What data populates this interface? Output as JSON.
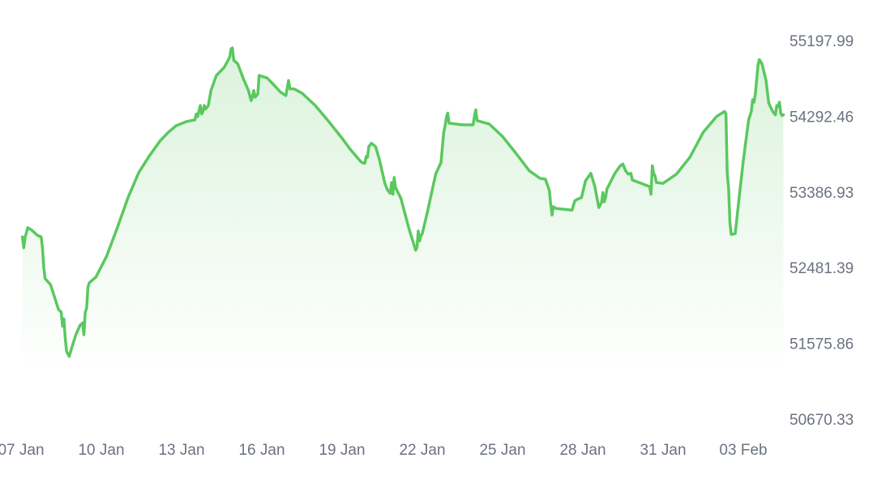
{
  "chart_data": {
    "type": "area",
    "title": "",
    "xlabel": "",
    "ylabel": "",
    "grid": false,
    "legend": "none",
    "ylim": [
      50670.33,
      55197.99
    ],
    "y_ticks": [
      "55197.99",
      "54292.46",
      "53386.93",
      "52481.39",
      "51575.86",
      "50670.33"
    ],
    "x_ticks": [
      {
        "day": 0,
        "label": "07 Jan"
      },
      {
        "day": 3,
        "label": "10 Jan"
      },
      {
        "day": 6,
        "label": "13 Jan"
      },
      {
        "day": 9,
        "label": "16 Jan"
      },
      {
        "day": 12,
        "label": "19 Jan"
      },
      {
        "day": 15,
        "label": "22 Jan"
      },
      {
        "day": 18,
        "label": "25 Jan"
      },
      {
        "day": 21,
        "label": "28 Jan"
      },
      {
        "day": 24,
        "label": "31 Jan"
      },
      {
        "day": 27,
        "label": "03 Feb"
      }
    ],
    "series": [
      {
        "color": "#5ac85f",
        "points": [
          [
            0.05,
            52850
          ],
          [
            0.1,
            52720
          ],
          [
            0.15,
            52840
          ],
          [
            0.25,
            52960
          ],
          [
            0.4,
            52930
          ],
          [
            0.6,
            52870
          ],
          [
            0.75,
            52850
          ],
          [
            0.8,
            52720
          ],
          [
            0.85,
            52480
          ],
          [
            0.9,
            52350
          ],
          [
            1.1,
            52280
          ],
          [
            1.3,
            52080
          ],
          [
            1.4,
            51980
          ],
          [
            1.5,
            51950
          ],
          [
            1.55,
            51780
          ],
          [
            1.6,
            51870
          ],
          [
            1.65,
            51650
          ],
          [
            1.7,
            51480
          ],
          [
            1.8,
            51420
          ],
          [
            1.9,
            51530
          ],
          [
            2.05,
            51680
          ],
          [
            2.2,
            51790
          ],
          [
            2.3,
            51820
          ],
          [
            2.35,
            51680
          ],
          [
            2.4,
            51950
          ],
          [
            2.45,
            52000
          ],
          [
            2.5,
            52250
          ],
          [
            2.55,
            52300
          ],
          [
            2.8,
            52370
          ],
          [
            3.2,
            52620
          ],
          [
            3.6,
            52960
          ],
          [
            4.0,
            53320
          ],
          [
            4.4,
            53620
          ],
          [
            4.8,
            53820
          ],
          [
            5.2,
            54000
          ],
          [
            5.5,
            54100
          ],
          [
            5.8,
            54180
          ],
          [
            6.2,
            54230
          ],
          [
            6.5,
            54250
          ],
          [
            6.55,
            54320
          ],
          [
            6.6,
            54290
          ],
          [
            6.7,
            54420
          ],
          [
            6.75,
            54320
          ],
          [
            6.8,
            54350
          ],
          [
            6.85,
            54420
          ],
          [
            6.9,
            54380
          ],
          [
            7.0,
            54420
          ],
          [
            7.1,
            54600
          ],
          [
            7.3,
            54780
          ],
          [
            7.6,
            54880
          ],
          [
            7.8,
            55000
          ],
          [
            7.85,
            55100
          ],
          [
            7.9,
            55110
          ],
          [
            7.95,
            54960
          ],
          [
            8.1,
            54920
          ],
          [
            8.3,
            54750
          ],
          [
            8.5,
            54600
          ],
          [
            8.6,
            54480
          ],
          [
            8.65,
            54520
          ],
          [
            8.7,
            54600
          ],
          [
            8.75,
            54520
          ],
          [
            8.85,
            54560
          ],
          [
            8.9,
            54780
          ],
          [
            9.2,
            54750
          ],
          [
            9.5,
            54650
          ],
          [
            9.7,
            54580
          ],
          [
            9.9,
            54540
          ],
          [
            10.0,
            54720
          ],
          [
            10.05,
            54620
          ],
          [
            10.2,
            54620
          ],
          [
            10.5,
            54570
          ],
          [
            11.0,
            54420
          ],
          [
            11.5,
            54230
          ],
          [
            12.0,
            54030
          ],
          [
            12.3,
            53900
          ],
          [
            12.7,
            53750
          ],
          [
            12.8,
            53730
          ],
          [
            12.85,
            53730
          ],
          [
            12.9,
            53810
          ],
          [
            12.95,
            53800
          ],
          [
            13.0,
            53930
          ],
          [
            13.1,
            53970
          ],
          [
            13.25,
            53930
          ],
          [
            13.4,
            53770
          ],
          [
            13.6,
            53490
          ],
          [
            13.7,
            53410
          ],
          [
            13.8,
            53370
          ],
          [
            13.85,
            53500
          ],
          [
            13.9,
            53360
          ],
          [
            13.95,
            53560
          ],
          [
            14.0,
            53440
          ],
          [
            14.2,
            53310
          ],
          [
            14.5,
            52950
          ],
          [
            14.75,
            52690
          ],
          [
            14.8,
            52720
          ],
          [
            14.85,
            52920
          ],
          [
            14.9,
            52800
          ],
          [
            14.95,
            52860
          ],
          [
            15.0,
            52890
          ],
          [
            15.2,
            53160
          ],
          [
            15.5,
            53600
          ],
          [
            15.7,
            53740
          ],
          [
            15.8,
            54100
          ],
          [
            15.85,
            54170
          ],
          [
            15.9,
            54280
          ],
          [
            15.95,
            54330
          ],
          [
            16.0,
            54210
          ],
          [
            16.5,
            54190
          ],
          [
            16.9,
            54190
          ],
          [
            16.95,
            54300
          ],
          [
            17.0,
            54370
          ],
          [
            17.05,
            54240
          ],
          [
            17.5,
            54200
          ],
          [
            18.0,
            54050
          ],
          [
            18.5,
            53850
          ],
          [
            19.0,
            53640
          ],
          [
            19.4,
            53550
          ],
          [
            19.6,
            53540
          ],
          [
            19.7,
            53450
          ],
          [
            19.75,
            53400
          ],
          [
            19.8,
            53240
          ],
          [
            19.85,
            53110
          ],
          [
            19.9,
            53210
          ],
          [
            20.0,
            53190
          ],
          [
            20.6,
            53170
          ],
          [
            20.7,
            53280
          ],
          [
            20.8,
            53300
          ],
          [
            20.95,
            53320
          ],
          [
            21.1,
            53520
          ],
          [
            21.3,
            53610
          ],
          [
            21.45,
            53450
          ],
          [
            21.6,
            53200
          ],
          [
            21.7,
            53260
          ],
          [
            21.75,
            53380
          ],
          [
            21.8,
            53270
          ],
          [
            21.85,
            53320
          ],
          [
            21.9,
            53420
          ],
          [
            22.2,
            53610
          ],
          [
            22.4,
            53700
          ],
          [
            22.5,
            53720
          ],
          [
            22.6,
            53640
          ],
          [
            22.7,
            53600
          ],
          [
            22.8,
            53610
          ],
          [
            22.85,
            53530
          ],
          [
            23.1,
            53500
          ],
          [
            23.5,
            53450
          ],
          [
            23.55,
            53360
          ],
          [
            23.6,
            53700
          ],
          [
            23.65,
            53610
          ],
          [
            23.7,
            53580
          ],
          [
            23.75,
            53500
          ],
          [
            24.0,
            53490
          ],
          [
            24.5,
            53600
          ],
          [
            25.0,
            53800
          ],
          [
            25.5,
            54100
          ],
          [
            26.0,
            54290
          ],
          [
            26.3,
            54350
          ],
          [
            26.35,
            54320
          ],
          [
            26.4,
            53610
          ],
          [
            26.45,
            53430
          ],
          [
            26.5,
            53020
          ],
          [
            26.55,
            52880
          ],
          [
            26.7,
            52890
          ],
          [
            26.85,
            53340
          ],
          [
            27.0,
            53760
          ],
          [
            27.2,
            54250
          ],
          [
            27.3,
            54350
          ],
          [
            27.35,
            54490
          ],
          [
            27.4,
            54460
          ],
          [
            27.45,
            54560
          ],
          [
            27.55,
            54900
          ],
          [
            27.6,
            54970
          ],
          [
            27.7,
            54920
          ],
          [
            27.85,
            54720
          ],
          [
            27.95,
            54450
          ],
          [
            28.1,
            54350
          ],
          [
            28.2,
            54310
          ],
          [
            28.25,
            54420
          ],
          [
            28.3,
            54410
          ],
          [
            28.35,
            54460
          ],
          [
            28.4,
            54330
          ],
          [
            28.45,
            54300
          ],
          [
            28.5,
            54310
          ]
        ]
      }
    ]
  }
}
